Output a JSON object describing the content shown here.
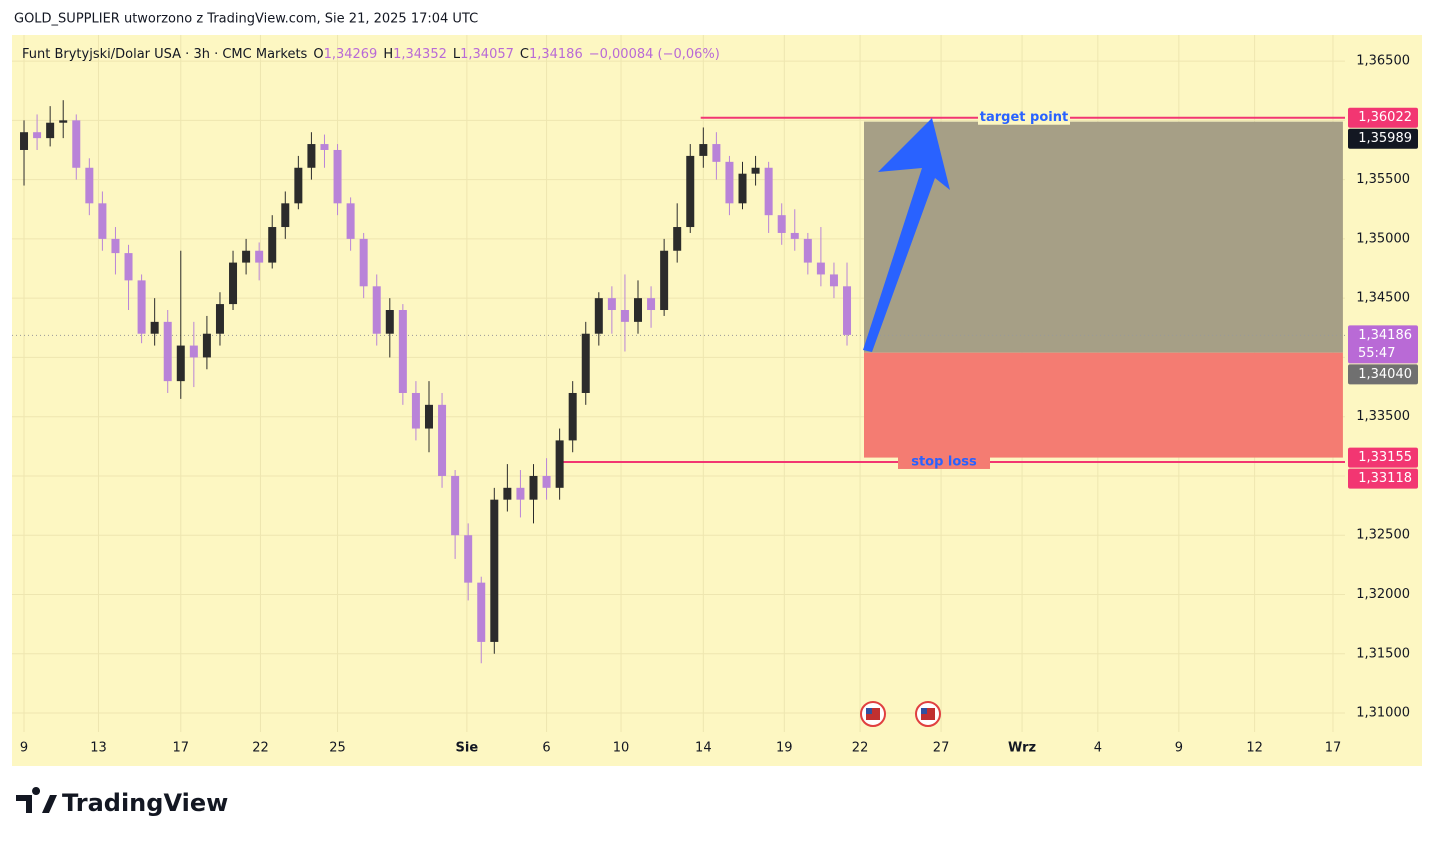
{
  "header": {
    "caption": "GOLD_SUPPLIER utworzono z TradingView.com, Sie 21, 2025 17:04 UTC"
  },
  "footer": {
    "brand": "TradingView"
  },
  "chart_data": {
    "type": "candlestick",
    "symbol": "Funt Brytyjski/Dolar USA · 3h · CMC Markets",
    "ohlc": [
      {
        "key": "O",
        "value": "1,34269"
      },
      {
        "key": "H",
        "value": "1,34352"
      },
      {
        "key": "L",
        "value": "1,34057"
      },
      {
        "key": "C",
        "value": "1,34186"
      }
    ],
    "change": "−0,00084 (−0,06%)",
    "up_color": "#2b2b2b",
    "down_color": "#b983d8",
    "background": "#fdf7c2",
    "grid": true,
    "x": [
      0,
      0.5,
      1,
      1.5,
      2,
      2.5,
      3,
      3.5,
      4,
      4.5,
      5,
      5.5,
      6,
      6.5,
      7,
      7.5,
      8,
      8.5,
      9,
      9.5,
      10,
      10.5,
      11,
      11.5,
      12,
      12.5,
      13,
      13.5,
      14,
      14.5,
      15,
      15.5,
      16,
      16.5,
      17,
      17.5,
      18,
      18.5,
      19,
      19.5,
      20,
      20.5,
      21,
      21.5,
      22,
      22.5,
      23,
      23.5,
      24,
      24.5,
      25,
      25.5,
      26,
      26.5,
      27,
      27.5,
      28,
      28.5,
      29,
      29.5,
      30,
      30.5,
      31,
      31.5
    ],
    "open": [
      1.3575,
      1.359,
      1.3585,
      1.3598,
      1.36,
      1.356,
      1.353,
      1.35,
      1.3488,
      1.3465,
      1.342,
      1.343,
      1.338,
      1.341,
      1.34,
      1.342,
      1.3445,
      1.348,
      1.349,
      1.348,
      1.351,
      1.353,
      1.356,
      1.358,
      1.3575,
      1.353,
      1.35,
      1.346,
      1.342,
      1.344,
      1.337,
      1.334,
      1.336,
      1.33,
      1.325,
      1.321,
      1.316,
      1.328,
      1.329,
      1.328,
      1.33,
      1.329,
      1.333,
      1.337,
      1.342,
      1.345,
      1.344,
      1.343,
      1.345,
      1.344,
      1.349,
      1.351,
      1.357,
      1.358,
      1.3565,
      1.353,
      1.3555,
      1.356,
      1.352,
      1.3505,
      1.35,
      1.348,
      1.347,
      1.346
    ],
    "high": [
      1.36,
      1.3605,
      1.3612,
      1.3617,
      1.3605,
      1.3568,
      1.354,
      1.351,
      1.3495,
      1.347,
      1.345,
      1.344,
      1.349,
      1.343,
      1.3435,
      1.3455,
      1.349,
      1.35,
      1.3497,
      1.352,
      1.354,
      1.357,
      1.359,
      1.3588,
      1.358,
      1.3535,
      1.3505,
      1.347,
      1.345,
      1.3445,
      1.338,
      1.338,
      1.337,
      1.3305,
      1.326,
      1.3215,
      1.329,
      1.331,
      1.3305,
      1.331,
      1.3315,
      1.334,
      1.338,
      1.343,
      1.3455,
      1.346,
      1.347,
      1.3465,
      1.346,
      1.35,
      1.353,
      1.358,
      1.3594,
      1.359,
      1.357,
      1.3565,
      1.357,
      1.3565,
      1.353,
      1.3525,
      1.3505,
      1.351,
      1.348,
      1.348
    ],
    "low": [
      1.3545,
      1.3575,
      1.3578,
      1.3585,
      1.355,
      1.352,
      1.349,
      1.347,
      1.344,
      1.3412,
      1.341,
      1.337,
      1.3365,
      1.3375,
      1.339,
      1.341,
      1.344,
      1.347,
      1.3465,
      1.3475,
      1.35,
      1.3525,
      1.355,
      1.356,
      1.352,
      1.349,
      1.345,
      1.341,
      1.34,
      1.336,
      1.333,
      1.332,
      1.329,
      1.323,
      1.3195,
      1.3142,
      1.315,
      1.327,
      1.3265,
      1.326,
      1.328,
      1.328,
      1.332,
      1.336,
      1.341,
      1.342,
      1.3405,
      1.342,
      1.3425,
      1.3435,
      1.348,
      1.3505,
      1.356,
      1.355,
      1.352,
      1.3525,
      1.3545,
      1.3505,
      1.3495,
      1.349,
      1.347,
      1.346,
      1.345,
      1.341
    ],
    "close": [
      1.359,
      1.3585,
      1.3598,
      1.36,
      1.356,
      1.353,
      1.35,
      1.3488,
      1.3465,
      1.342,
      1.343,
      1.338,
      1.341,
      1.34,
      1.342,
      1.3445,
      1.348,
      1.349,
      1.348,
      1.351,
      1.353,
      1.356,
      1.358,
      1.3575,
      1.353,
      1.35,
      1.346,
      1.342,
      1.344,
      1.337,
      1.334,
      1.336,
      1.33,
      1.325,
      1.321,
      1.316,
      1.328,
      1.329,
      1.328,
      1.33,
      1.329,
      1.333,
      1.337,
      1.342,
      1.345,
      1.344,
      1.343,
      1.345,
      1.344,
      1.349,
      1.351,
      1.357,
      1.358,
      1.3565,
      1.353,
      1.3555,
      1.356,
      1.352,
      1.3505,
      1.35,
      1.348,
      1.347,
      1.346,
      1.3419
    ],
    "xlim": [
      -0.46,
      50.56
    ],
    "ylim": [
      1.3084,
      1.3672
    ],
    "xticks": [
      {
        "value": 0,
        "label": "9"
      },
      {
        "value": 2.85,
        "label": "13"
      },
      {
        "value": 6,
        "label": "17"
      },
      {
        "value": 9.05,
        "label": "22"
      },
      {
        "value": 12,
        "label": "25"
      },
      {
        "value": 16.95,
        "label": "Sie",
        "bold": true
      },
      {
        "value": 20,
        "label": "6"
      },
      {
        "value": 22.85,
        "label": "10"
      },
      {
        "value": 26,
        "label": "14"
      },
      {
        "value": 29.1,
        "label": "19"
      },
      {
        "value": 32,
        "label": "22"
      },
      {
        "value": 35.1,
        "label": "27"
      },
      {
        "value": 38.2,
        "label": "Wrz",
        "bold": true
      },
      {
        "value": 41.1,
        "label": "4"
      },
      {
        "value": 44.2,
        "label": "9"
      },
      {
        "value": 47.1,
        "label": "12"
      },
      {
        "value": 50.1,
        "label": "17"
      }
    ],
    "yticks": [
      {
        "value": 1.365,
        "label": "1,36500"
      },
      {
        "value": 1.36,
        "label": "1,36000"
      },
      {
        "value": 1.355,
        "label": "1,35500"
      },
      {
        "value": 1.35,
        "label": "1,35000"
      },
      {
        "value": 1.345,
        "label": "1,34500"
      },
      {
        "value": 1.34,
        "label": "1,34000"
      },
      {
        "value": 1.335,
        "label": "1,33500"
      },
      {
        "value": 1.33,
        "label": "1,33000"
      },
      {
        "value": 1.325,
        "label": "1,32500"
      },
      {
        "value": 1.32,
        "label": "1,32000"
      },
      {
        "value": 1.315,
        "label": "1,31500"
      },
      {
        "value": 1.31,
        "label": "1,31000"
      }
    ],
    "target_line": {
      "value": 1.36022,
      "label": "1,36022",
      "x_start": 25.9,
      "text": "target point",
      "color": "#f23672"
    },
    "stop_line": {
      "value": 1.33118,
      "label": "1,33118",
      "x_start": 20.5,
      "text": "stop loss",
      "color": "#f23672"
    },
    "position": {
      "x_start": 32.15,
      "x_end": 50.48,
      "target": {
        "value": 1.35989,
        "label": "1,35989",
        "color": "#a69f86"
      },
      "entry": {
        "value": 1.3404,
        "label": "1,34040",
        "color": "#f47c72"
      },
      "stop": {
        "value": 1.33155,
        "label": "1,33155"
      }
    },
    "last_price": {
      "value": 1.34186,
      "label": "1,34186",
      "countdown": "55:47",
      "color": "#b96ad6"
    }
  }
}
